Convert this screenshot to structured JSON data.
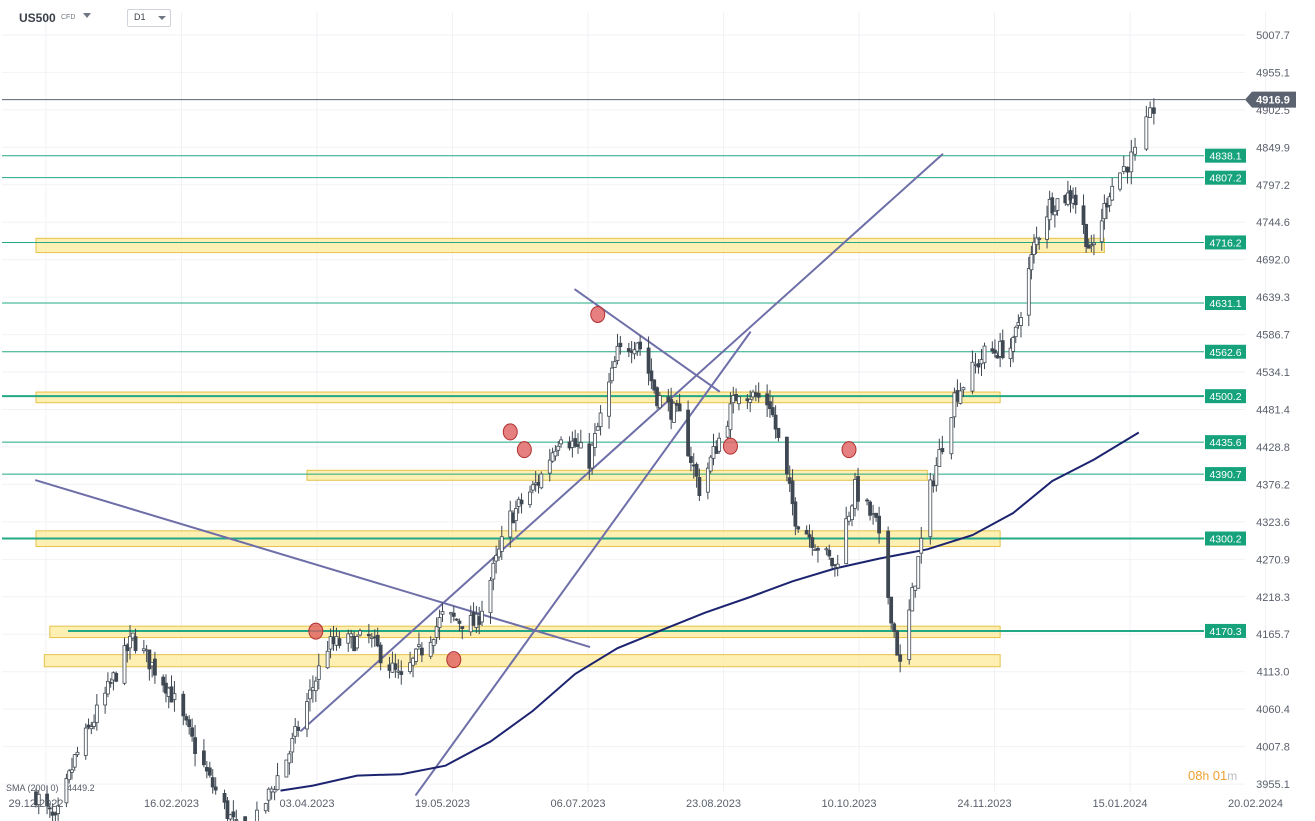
{
  "header": {
    "symbol": "US500",
    "instrument_type": "CFD",
    "timeframe": "D1"
  },
  "indicator": {
    "label": "SMA (200, 0)",
    "value": "4449.2"
  },
  "countdown": {
    "hours": "08",
    "h_unit": "h",
    "minutes": "01",
    "m_unit": "m"
  },
  "colors": {
    "up_candle": "#ffffff",
    "down_candle": "#3f4852",
    "level_line": "#22a884",
    "level_label": "#16a37c",
    "zone_fill": "#fde99a",
    "sma_line": "#1c2470",
    "trend_line": "#6e6fa8",
    "marker": "#e06060",
    "current_price": "#5b6270"
  },
  "chart_data": {
    "type": "candlestick",
    "x_tick_labels": [
      "29.12.2022",
      "16.02.2023",
      "03.04.2023",
      "19.05.2023",
      "06.07.2023",
      "23.08.2023",
      "10.10.2023",
      "24.11.2023",
      "15.01.2024",
      "20.02.2024"
    ],
    "y_tick_labels": [
      "5007.7",
      "4955.1",
      "4902.5",
      "4849.9",
      "4797.2",
      "4744.6",
      "4692.0",
      "4639.3",
      "4586.7",
      "4534.1",
      "4481.4",
      "4428.8",
      "4376.2",
      "4323.6",
      "4270.9",
      "4218.3",
      "4165.7",
      "4113.0",
      "4060.4",
      "4007.8",
      "3955.1"
    ],
    "ylim": [
      3944,
      5040
    ],
    "current_price": 4916.9,
    "current_price_label": "4916.9",
    "sma_period": 200,
    "sma_value": 4449.2,
    "horizontal_levels": [
      {
        "value": 4838.1,
        "label": "4838.1"
      },
      {
        "value": 4807.2,
        "label": "4807.2"
      },
      {
        "value": 4716.2,
        "label": "4716.2"
      },
      {
        "value": 4631.1,
        "label": "4631.1"
      },
      {
        "value": 4562.6,
        "label": "4562.6"
      },
      {
        "value": 4500.2,
        "label": "4500.2"
      },
      {
        "value": 4435.6,
        "label": "4435.6"
      },
      {
        "value": 4390.7,
        "label": "4390.7"
      },
      {
        "value": 4300.2,
        "label": "4300.2"
      },
      {
        "value": 4170.3,
        "label": "4170.3"
      }
    ],
    "zones": [
      {
        "low": 4702,
        "high": 4722,
        "from": "29.12.2022",
        "to": "09.01.2024"
      },
      {
        "low": 4491,
        "high": 4506,
        "from": "29.12.2022",
        "to": "30.11.2023"
      },
      {
        "low": 4382,
        "high": 4396,
        "from": "03.04.2023",
        "to": "05.11.2023"
      },
      {
        "low": 4289,
        "high": 4311,
        "from": "29.12.2022",
        "to": "30.11.2023"
      },
      {
        "low": 4161,
        "high": 4177,
        "from": "03.01.2023",
        "to": "30.11.2023"
      },
      {
        "low": 4120,
        "high": 4137,
        "from": "01.01.2023",
        "to": "30.11.2023"
      }
    ]
  }
}
